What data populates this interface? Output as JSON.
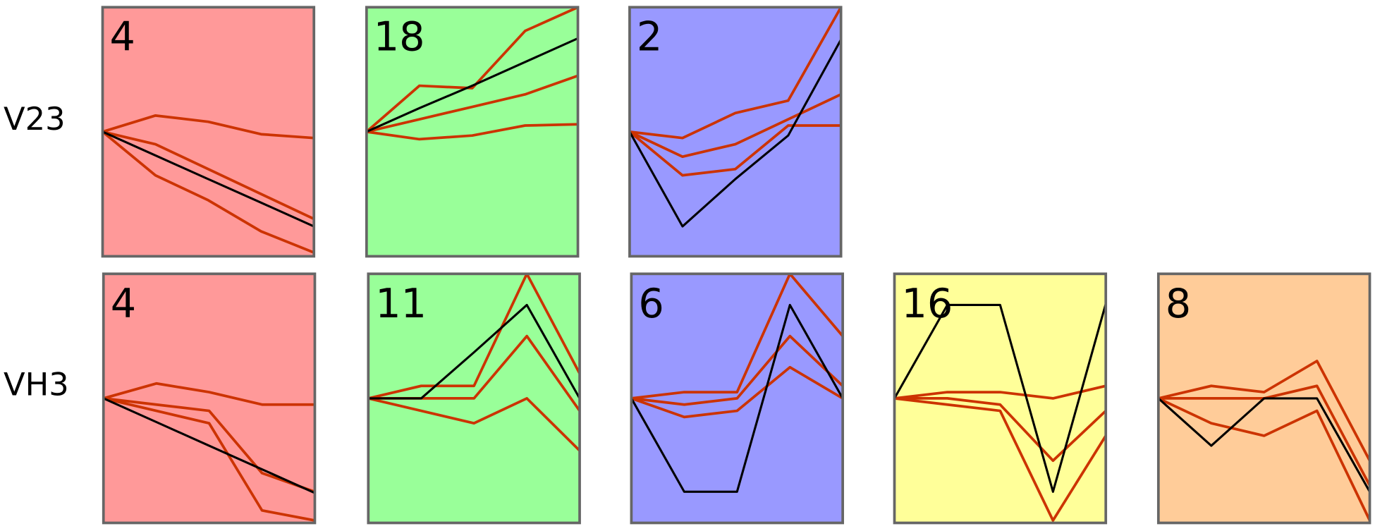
{
  "row_labels": [
    "V23",
    "VH3"
  ],
  "chart_data": [
    {
      "type": "line",
      "title": "4",
      "background": "#ff9999",
      "ylim": [
        -1,
        1
      ],
      "series": [
        {
          "color": "#cc3300",
          "values": [
            0,
            0.13,
            0.08,
            -0.02,
            -0.05
          ]
        },
        {
          "color": "#cc3300",
          "values": [
            0,
            -0.1,
            -0.3,
            -0.5,
            -0.7
          ]
        },
        {
          "color": "#cc3300",
          "values": [
            0,
            -0.35,
            -0.55,
            -0.8,
            -0.97
          ]
        },
        {
          "color": "#000000",
          "values": [
            0,
            -0.19,
            -0.38,
            -0.57,
            -0.76
          ]
        }
      ]
    },
    {
      "type": "line",
      "title": "18",
      "background": "#99ff99",
      "ylim": [
        -1,
        1
      ],
      "series": [
        {
          "color": "#cc3300",
          "values": [
            0,
            0.37,
            0.35,
            0.81,
            1.0
          ]
        },
        {
          "color": "#cc3300",
          "values": [
            0,
            0.1,
            0.2,
            0.3,
            0.45
          ]
        },
        {
          "color": "#cc3300",
          "values": [
            0,
            -0.06,
            -0.03,
            0.05,
            0.06
          ]
        },
        {
          "color": "#000000",
          "values": [
            0,
            0.19,
            0.37,
            0.56,
            0.75
          ]
        }
      ]
    },
    {
      "type": "line",
      "title": "2",
      "background": "#9999ff",
      "ylim": [
        -1,
        1
      ],
      "series": [
        {
          "color": "#cc3300",
          "values": [
            0,
            -0.05,
            0.15,
            0.25,
            1.0
          ]
        },
        {
          "color": "#cc3300",
          "values": [
            0,
            -0.2,
            -0.1,
            0.1,
            0.3
          ]
        },
        {
          "color": "#cc3300",
          "values": [
            0,
            -0.35,
            -0.3,
            0.05,
            0.05
          ]
        },
        {
          "color": "#000000",
          "values": [
            0,
            -0.76,
            -0.38,
            -0.03,
            0.74
          ]
        }
      ]
    },
    {
      "type": "line",
      "title": "4",
      "background": "#ff9999",
      "ylim": [
        -1,
        1
      ],
      "series": [
        {
          "color": "#cc3300",
          "values": [
            0,
            0.12,
            0.05,
            -0.05,
            -0.05
          ]
        },
        {
          "color": "#cc3300",
          "values": [
            0,
            -0.05,
            -0.1,
            -0.6,
            -0.75
          ]
        },
        {
          "color": "#cc3300",
          "values": [
            0,
            -0.1,
            -0.2,
            -0.9,
            -0.98
          ]
        },
        {
          "color": "#000000",
          "values": [
            0,
            -0.19,
            -0.38,
            -0.57,
            -0.76
          ]
        }
      ]
    },
    {
      "type": "line",
      "title": "11",
      "background": "#99ff99",
      "ylim": [
        -1,
        1
      ],
      "series": [
        {
          "color": "#cc3300",
          "values": [
            0,
            0.1,
            0.1,
            1.0,
            0.2
          ]
        },
        {
          "color": "#cc3300",
          "values": [
            0,
            0,
            0,
            0.5,
            -0.1
          ]
        },
        {
          "color": "#cc3300",
          "values": [
            0,
            -0.1,
            -0.2,
            0,
            -0.42
          ]
        },
        {
          "color": "#000000",
          "values": [
            0,
            0,
            0.37,
            0.75,
            0
          ]
        }
      ]
    },
    {
      "type": "line",
      "title": "6",
      "background": "#9999ff",
      "ylim": [
        -1,
        1
      ],
      "series": [
        {
          "color": "#cc3300",
          "values": [
            0,
            0.05,
            0.05,
            1.0,
            0.5
          ]
        },
        {
          "color": "#cc3300",
          "values": [
            0,
            -0.05,
            0,
            0.5,
            0.1
          ]
        },
        {
          "color": "#cc3300",
          "values": [
            0,
            -0.15,
            -0.1,
            0.25,
            0
          ]
        },
        {
          "color": "#000000",
          "values": [
            0,
            -0.75,
            -0.75,
            0.75,
            0
          ]
        }
      ]
    },
    {
      "type": "line",
      "title": "16",
      "background": "#ffff99",
      "ylim": [
        -1,
        1
      ],
      "series": [
        {
          "color": "#cc3300",
          "values": [
            0,
            0.05,
            0.05,
            0,
            0.1
          ]
        },
        {
          "color": "#cc3300",
          "values": [
            0,
            0,
            -0.05,
            -0.5,
            -0.1
          ]
        },
        {
          "color": "#cc3300",
          "values": [
            0,
            -0.05,
            -0.1,
            -0.98,
            -0.3
          ]
        },
        {
          "color": "#000000",
          "values": [
            0,
            0.75,
            0.75,
            -0.75,
            0.76
          ]
        }
      ]
    },
    {
      "type": "line",
      "title": "8",
      "background": "#ffcc99",
      "ylim": [
        -1,
        1
      ],
      "series": [
        {
          "color": "#cc3300",
          "values": [
            0,
            0.1,
            0.05,
            0.3,
            -0.5
          ]
        },
        {
          "color": "#cc3300",
          "values": [
            0,
            0,
            0,
            0.1,
            -0.7
          ]
        },
        {
          "color": "#cc3300",
          "values": [
            0,
            -0.2,
            -0.3,
            -0.1,
            -0.98
          ]
        },
        {
          "color": "#000000",
          "values": [
            0,
            -0.38,
            0,
            0,
            -0.75
          ]
        }
      ]
    }
  ]
}
